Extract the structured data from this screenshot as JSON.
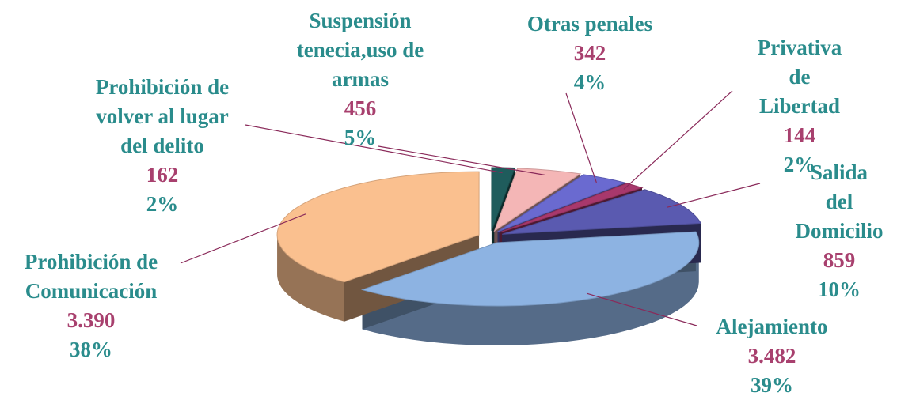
{
  "chart_data": {
    "type": "pie",
    "categories": [
      "Alejamiento",
      "Prohibición de\nComunicación",
      "Prohibición de\nvolver al lugar\ndel delito",
      "Suspensión\ntenecia,uso de\narmas",
      "Otras penales",
      "Privativa de\nLibertad",
      "Salida del\nDomicilio"
    ],
    "values": [
      3482,
      3390,
      162,
      456,
      342,
      144,
      859
    ],
    "value_labels": [
      "3.482",
      "3.390",
      "162",
      "456",
      "342",
      "144",
      "859"
    ],
    "percent_labels": [
      "39%",
      "38%",
      "2%",
      "5%",
      "4%",
      "2%",
      "10%"
    ],
    "colors": [
      "#8db3e2",
      "#fac08f",
      "#1f5c5c",
      "#f4b6b6",
      "#6a6ad0",
      "#a8386c",
      "#5a5ab0"
    ]
  }
}
